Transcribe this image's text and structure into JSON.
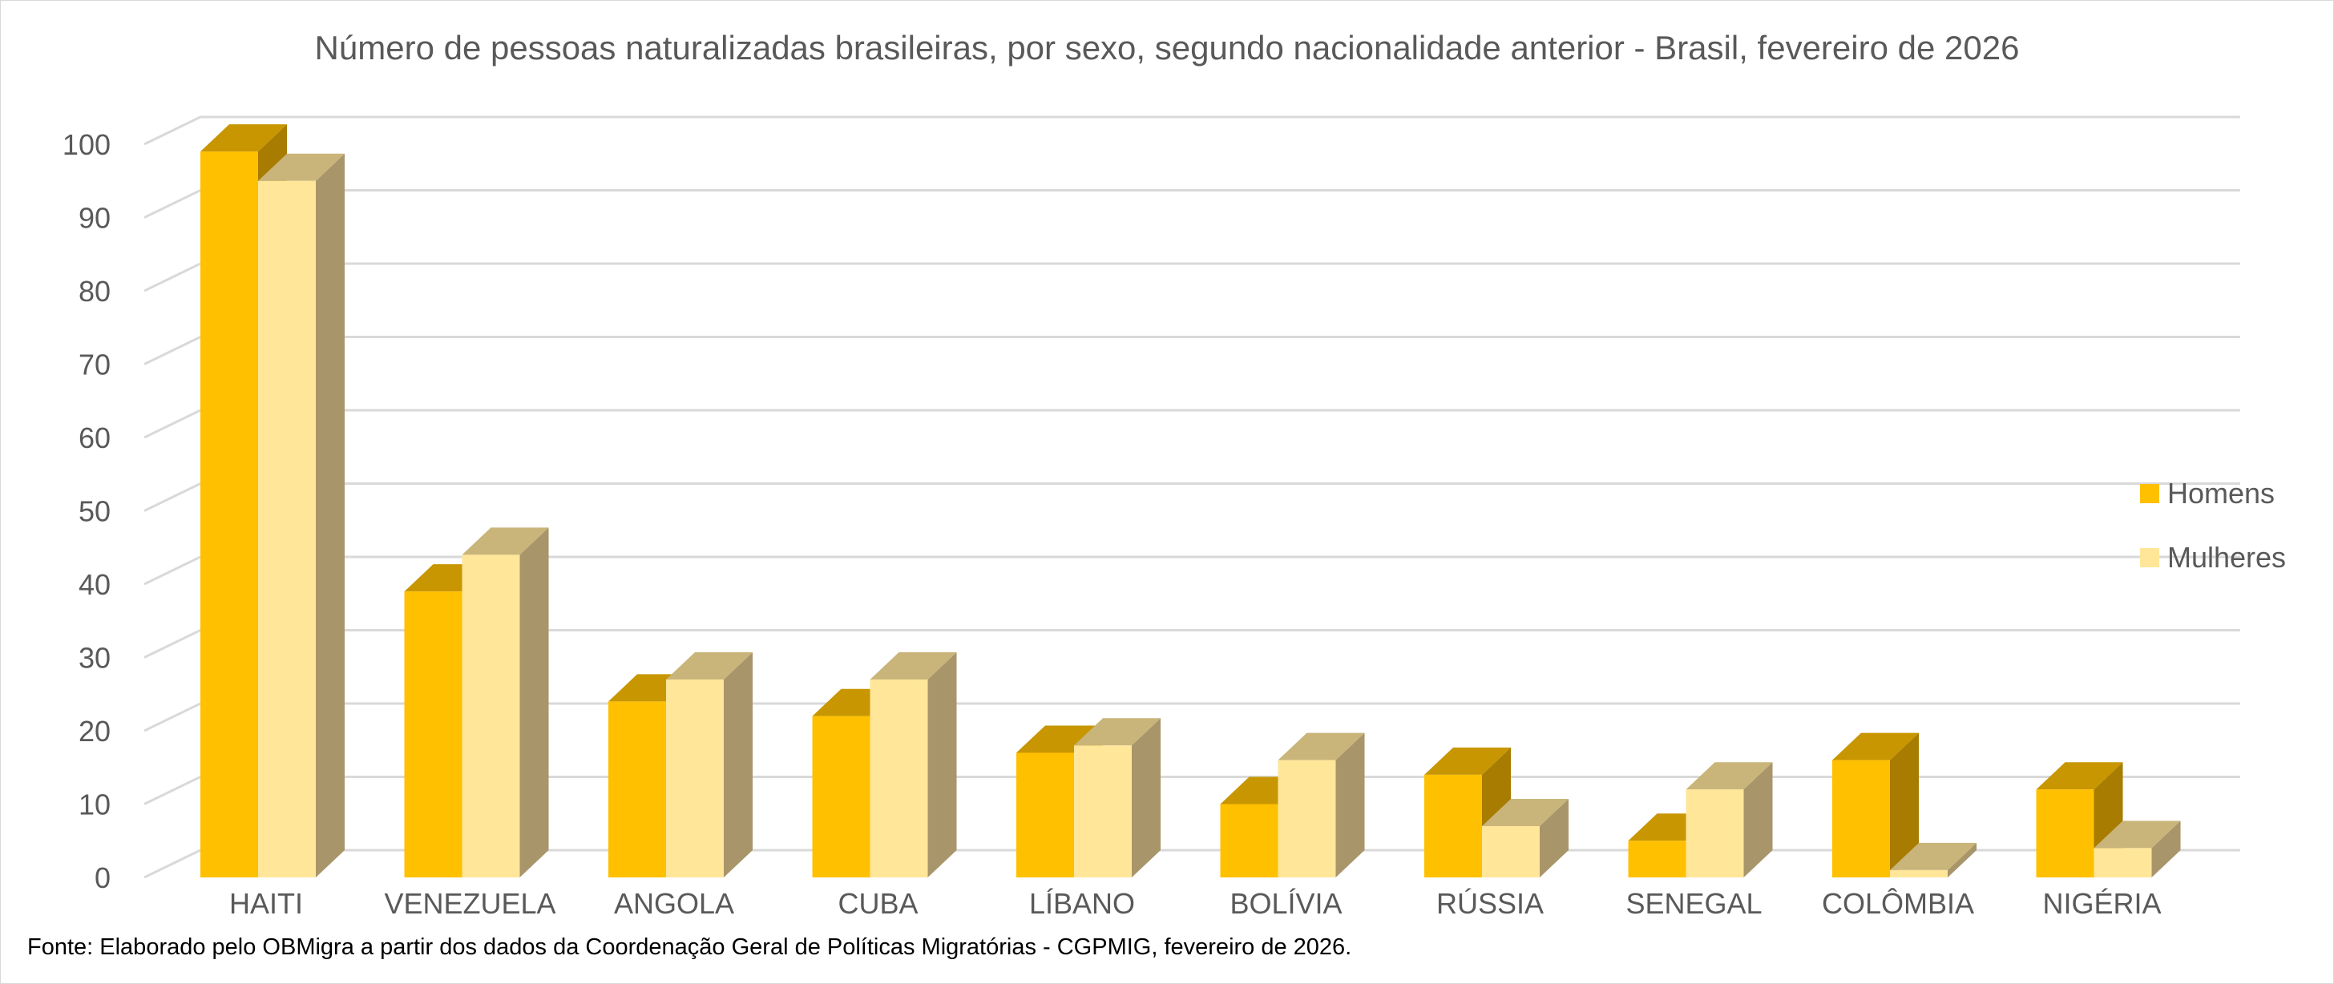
{
  "chart_data": {
    "type": "bar",
    "title": "Número de pessoas naturalizadas brasileiras, por sexo, segundo nacionalidade anterior - Brasil, fevereiro de 2026",
    "categories": [
      "HAITI",
      "VENEZUELA",
      "ANGOLA",
      "CUBA",
      "LÍBANO",
      "BOLÍVIA",
      "RÚSSIA",
      "SENEGAL",
      "COLÔMBIA",
      "NIGÉRIA"
    ],
    "series": [
      {
        "name": "Homens",
        "color": "#FFC000",
        "top_color": "#C89600",
        "side_color": "#A77C00",
        "values": [
          99,
          39,
          24,
          22,
          17,
          10,
          14,
          5,
          16,
          12
        ]
      },
      {
        "name": "Mulheres",
        "color": "#FFE699",
        "top_color": "#C9B47A",
        "side_color": "#A8956A",
        "values": [
          95,
          44,
          27,
          27,
          18,
          16,
          7,
          12,
          1,
          4
        ]
      }
    ],
    "yticks": [
      0,
      10,
      20,
      30,
      40,
      50,
      60,
      70,
      80,
      90,
      100
    ],
    "ylim": [
      0,
      100
    ],
    "xlabel": "",
    "ylabel": "",
    "grid": true,
    "legend": "right",
    "source_note": "Fonte: Elaborado pelo OBMigra a partir dos dados da Coordenação Geral de Políticas Migratórias - CGPMIG, fevereiro de 2026."
  }
}
